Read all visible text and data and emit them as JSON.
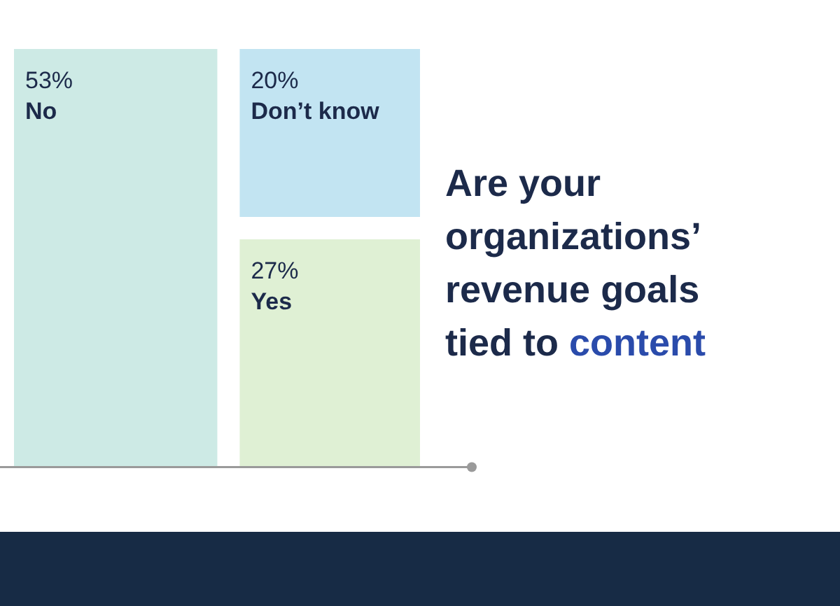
{
  "chart_data": {
    "type": "other",
    "title": "Are your organizations’ revenue goals tied to content",
    "categories": [
      "No",
      "Don’t know",
      "Yes"
    ],
    "values": [
      53,
      20,
      27
    ],
    "value_labels": [
      "53%",
      "20%",
      "27%"
    ],
    "colors": [
      "#cdeae5",
      "#c2e4f2",
      "#dff0d4"
    ]
  }
}
